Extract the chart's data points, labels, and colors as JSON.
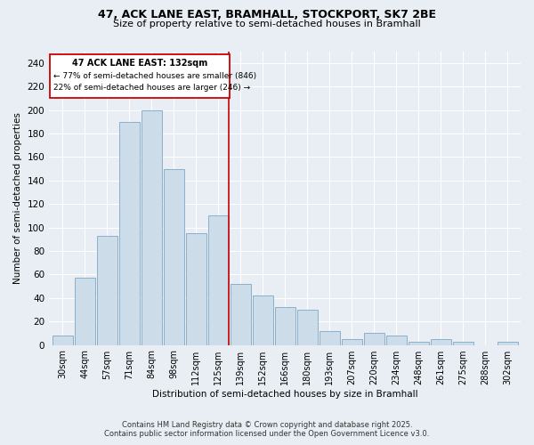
{
  "title": "47, ACK LANE EAST, BRAMHALL, STOCKPORT, SK7 2BE",
  "subtitle": "Size of property relative to semi-detached houses in Bramhall",
  "xlabel": "Distribution of semi-detached houses by size in Bramhall",
  "ylabel": "Number of semi-detached properties",
  "categories": [
    "30sqm",
    "44sqm",
    "57sqm",
    "71sqm",
    "84sqm",
    "98sqm",
    "112sqm",
    "125sqm",
    "139sqm",
    "152sqm",
    "166sqm",
    "180sqm",
    "193sqm",
    "207sqm",
    "220sqm",
    "234sqm",
    "248sqm",
    "261sqm",
    "275sqm",
    "288sqm",
    "302sqm"
  ],
  "values": [
    8,
    57,
    93,
    190,
    200,
    150,
    95,
    110,
    52,
    42,
    32,
    30,
    12,
    5,
    10,
    8,
    3,
    5,
    3,
    0,
    3
  ],
  "bar_color": "#ccdce8",
  "bar_edge_color": "#8ab0cc",
  "highlight_index": 7,
  "highlight_line_color": "#cc0000",
  "annotation_line1": "47 ACK LANE EAST: 132sqm",
  "annotation_line2": "← 77% of semi-detached houses are smaller (846)",
  "annotation_line3": "22% of semi-detached houses are larger (246) →",
  "annotation_box_color": "#cc0000",
  "ylim": [
    0,
    250
  ],
  "yticks": [
    0,
    20,
    40,
    60,
    80,
    100,
    120,
    140,
    160,
    180,
    200,
    220,
    240
  ],
  "background_color": "#e8eef4",
  "grid_color": "#ffffff",
  "footer_line1": "Contains HM Land Registry data © Crown copyright and database right 2025.",
  "footer_line2": "Contains public sector information licensed under the Open Government Licence v3.0."
}
